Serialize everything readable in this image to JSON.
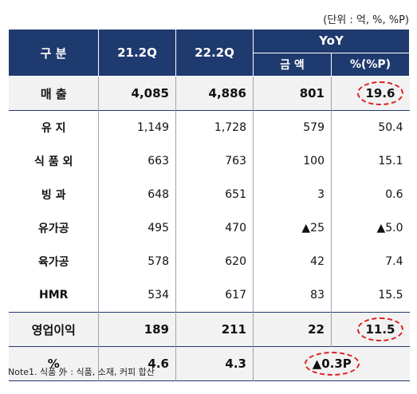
{
  "unit_label": "(단위 : 억, %, %P)",
  "header": {
    "category": "구 분",
    "col_21": "21.2Q",
    "col_22": "22.2Q",
    "yoy": "YoY",
    "amount": "금 액",
    "pct": "%(%P)"
  },
  "rows": [
    {
      "label": "매 출",
      "v21": "4,085",
      "v22": "4,886",
      "amount": "801",
      "pct": "19.6"
    },
    {
      "label": "유 지",
      "v21": "1,149",
      "v22": "1,728",
      "amount": "579",
      "pct": "50.4"
    },
    {
      "label": "식 품 외",
      "v21": "663",
      "v22": "763",
      "amount": "100",
      "pct": "15.1"
    },
    {
      "label": "빙 과",
      "v21": "648",
      "v22": "651",
      "amount": "3",
      "pct": "0.6"
    },
    {
      "label": "유가공",
      "v21": "495",
      "v22": "470",
      "amount": "▲25",
      "pct": "▲5.0"
    },
    {
      "label": "육가공",
      "v21": "578",
      "v22": "620",
      "amount": "42",
      "pct": "7.4"
    },
    {
      "label": "HMR",
      "v21": "534",
      "v22": "617",
      "amount": "83",
      "pct": "15.5"
    },
    {
      "label": "영업이익",
      "v21": "189",
      "v22": "211",
      "amount": "22",
      "pct": "11.5"
    },
    {
      "label": "%",
      "v21": "4.6",
      "v22": "4.3",
      "amount": "▲0.3P"
    }
  ],
  "note": "Note1. 식품 外 : 식품, 소재, 커피 합산",
  "highlight_color": "#e02020",
  "header_color": "#1f3a6e"
}
